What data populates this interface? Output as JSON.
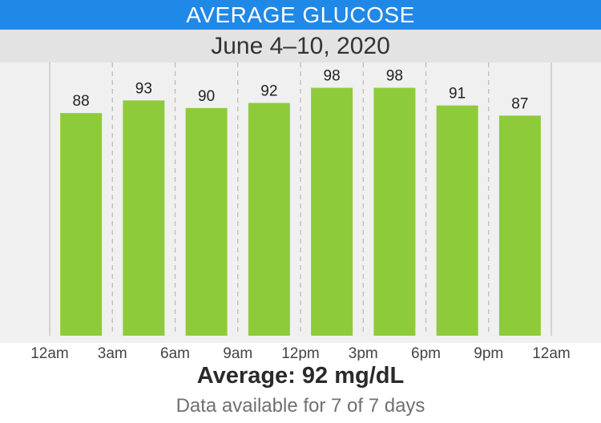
{
  "header": {
    "title": "AVERAGE GLUCOSE",
    "date_range": "June 4–10, 2020"
  },
  "footer": {
    "average": "Average: 92 mg/dL",
    "availability": "Data available for 7 of 7 days"
  },
  "colors": {
    "title_bg": "#2088e6",
    "date_bg": "#e3e3e3",
    "plot_bg": "#f0f0f0",
    "bar": "#8ecb3a"
  },
  "chart_data": {
    "type": "bar",
    "x_ticks": [
      "12am",
      "3am",
      "6am",
      "9am",
      "12pm",
      "3pm",
      "6pm",
      "9pm",
      "12am"
    ],
    "categories": [
      "12am–3am",
      "3am–6am",
      "6am–9am",
      "9am–12pm",
      "12pm–3pm",
      "3pm–6pm",
      "6pm–9pm",
      "9pm–12am"
    ],
    "values": [
      88,
      93,
      90,
      92,
      98,
      98,
      91,
      87
    ],
    "value_labels": [
      "88",
      "93",
      "90",
      "92",
      "98",
      "98",
      "91",
      "87"
    ],
    "ylim": [
      0,
      108
    ],
    "grid": "vertical-dashed",
    "legend": "none"
  }
}
